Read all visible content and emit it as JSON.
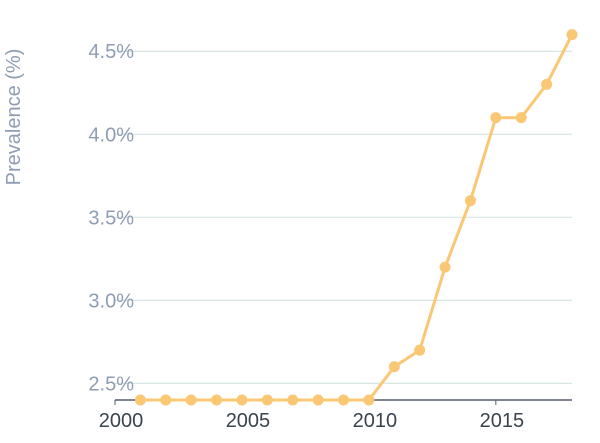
{
  "chart_data": {
    "type": "line",
    "title": "",
    "xlabel": "",
    "ylabel": "Prevalence (%)",
    "xlim": [
      2000,
      2018
    ],
    "ylim": [
      2.4,
      4.7
    ],
    "x_ticks": [
      2000,
      2005,
      2010,
      2015
    ],
    "x_tick_labels": [
      "2000",
      "2005",
      "2010",
      "2015"
    ],
    "y_ticks": [
      2.5,
      3.0,
      3.5,
      4.0,
      4.5
    ],
    "y_tick_labels": [
      "2.5%",
      "3.0%",
      "3.5%",
      "4.0%",
      "4.5%"
    ],
    "grid": "horizontal",
    "legend": "none",
    "series": [
      {
        "color": "#fac775",
        "x": [
          2001,
          2002,
          2003,
          2004,
          2005,
          2006,
          2007,
          2008,
          2009,
          2010,
          2011,
          2012,
          2013,
          2014,
          2015,
          2016,
          2017,
          2018
        ],
        "y": [
          2.4,
          2.4,
          2.4,
          2.4,
          2.4,
          2.4,
          2.4,
          2.4,
          2.4,
          2.4,
          2.6,
          2.7,
          3.2,
          3.6,
          4.1,
          4.1,
          4.3,
          4.6
        ]
      }
    ],
    "colors": {
      "grid": "#d6e6e4",
      "axis": "#555d6b",
      "tick_text": "#8f9db3",
      "x_tick_text": "#3c4350"
    }
  }
}
